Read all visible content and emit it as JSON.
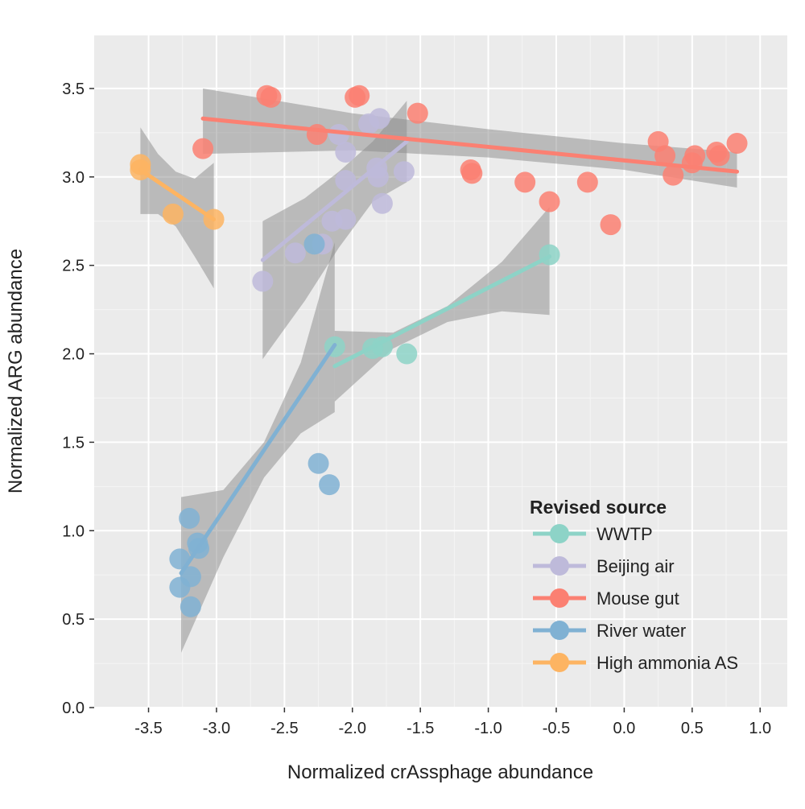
{
  "chart_data": {
    "type": "scatter",
    "title": "",
    "xlabel": "Normalized crAssphage abundance",
    "ylabel": "Normalized ARG abundance",
    "xlim": [
      -3.9,
      1.2
    ],
    "ylim": [
      0.0,
      3.8
    ],
    "xticks": [
      "-3.5",
      "-3.0",
      "-2.5",
      "-2.0",
      "-1.5",
      "-1.0",
      "-0.5",
      "0.0",
      "0.5",
      "1.0"
    ],
    "yticks": [
      "0.0",
      "0.5",
      "1.0",
      "1.5",
      "2.0",
      "2.5",
      "3.0",
      "3.5"
    ],
    "grid": true,
    "legend_title": "Revised source",
    "legend_position": "bottom-right",
    "series": [
      {
        "name": "WWTP",
        "color": "#8dd3c7",
        "points": [
          [
            -2.13,
            2.04
          ],
          [
            -1.85,
            2.03
          ],
          [
            -1.78,
            2.04
          ],
          [
            -1.6,
            2.0
          ],
          [
            -0.55,
            2.56
          ]
        ],
        "fit": [
          [
            -2.13,
            1.93
          ],
          [
            -0.55,
            2.55
          ]
        ],
        "band": {
          "x": [
            -2.13,
            -1.7,
            -1.3,
            -0.9,
            -0.55
          ],
          "lower": [
            1.73,
            2.03,
            2.18,
            2.24,
            2.22
          ],
          "upper": [
            2.13,
            2.12,
            2.27,
            2.52,
            2.83
          ]
        }
      },
      {
        "name": "Beijing air",
        "color": "#bebada",
        "points": [
          [
            -2.66,
            2.41
          ],
          [
            -2.42,
            2.57
          ],
          [
            -2.22,
            2.62
          ],
          [
            -2.15,
            2.75
          ],
          [
            -2.05,
            2.76
          ],
          [
            -2.05,
            2.98
          ],
          [
            -2.05,
            3.14
          ],
          [
            -2.1,
            3.24
          ],
          [
            -1.88,
            3.3
          ],
          [
            -1.8,
            3.33
          ],
          [
            -1.82,
            3.05
          ],
          [
            -1.81,
            3.0
          ],
          [
            -1.78,
            2.85
          ],
          [
            -1.62,
            3.03
          ]
        ],
        "fit": [
          [
            -2.66,
            2.53
          ],
          [
            -1.6,
            3.2
          ]
        ],
        "band": {
          "x": [
            -2.66,
            -2.35,
            -2.1,
            -1.85,
            -1.6
          ],
          "lower": [
            1.97,
            2.3,
            2.6,
            2.86,
            2.97
          ],
          "upper": [
            2.75,
            2.88,
            3.03,
            3.2,
            3.43
          ]
        }
      },
      {
        "name": "Mouse gut",
        "color": "#fb8072",
        "points": [
          [
            -3.1,
            3.16
          ],
          [
            -2.63,
            3.46
          ],
          [
            -2.6,
            3.45
          ],
          [
            -2.26,
            3.24
          ],
          [
            -1.98,
            3.45
          ],
          [
            -1.95,
            3.46
          ],
          [
            -1.52,
            3.36
          ],
          [
            -1.13,
            3.04
          ],
          [
            -1.12,
            3.02
          ],
          [
            -0.73,
            2.97
          ],
          [
            -0.55,
            2.86
          ],
          [
            -0.27,
            2.97
          ],
          [
            -0.1,
            2.73
          ],
          [
            0.25,
            3.2
          ],
          [
            0.3,
            3.12
          ],
          [
            0.36,
            3.01
          ],
          [
            0.5,
            3.08
          ],
          [
            0.52,
            3.12
          ],
          [
            0.68,
            3.14
          ],
          [
            0.7,
            3.12
          ],
          [
            0.83,
            3.19
          ]
        ],
        "fit": [
          [
            -3.1,
            3.33
          ],
          [
            0.83,
            3.03
          ]
        ],
        "band": {
          "x": [
            -3.1,
            -2.0,
            -1.0,
            0.0,
            0.83
          ],
          "lower": [
            3.13,
            3.15,
            3.11,
            3.04,
            2.94
          ],
          "upper": [
            3.5,
            3.36,
            3.27,
            3.19,
            3.14
          ]
        }
      },
      {
        "name": "River water",
        "color": "#80b1d3",
        "points": [
          [
            -3.27,
            0.84
          ],
          [
            -3.27,
            0.68
          ],
          [
            -3.2,
            1.07
          ],
          [
            -3.19,
            0.74
          ],
          [
            -3.19,
            0.57
          ],
          [
            -3.14,
            0.93
          ],
          [
            -3.13,
            0.9
          ],
          [
            -2.28,
            2.62
          ],
          [
            -2.25,
            1.38
          ],
          [
            -2.17,
            1.26
          ]
        ],
        "fit": [
          [
            -3.26,
            0.76
          ],
          [
            -2.13,
            2.05
          ]
        ],
        "band": {
          "x": [
            -3.26,
            -2.95,
            -2.65,
            -2.38,
            -2.13
          ],
          "lower": [
            0.31,
            0.85,
            1.3,
            1.55,
            1.67
          ],
          "upper": [
            1.19,
            1.23,
            1.5,
            1.95,
            2.63
          ]
        }
      },
      {
        "name": "High ammonia AS",
        "color": "#fdb462",
        "points": [
          [
            -3.56,
            3.07
          ],
          [
            -3.56,
            3.04
          ],
          [
            -3.32,
            2.79
          ],
          [
            -3.02,
            2.76
          ]
        ],
        "fit": [
          [
            -3.56,
            3.04
          ],
          [
            -3.02,
            2.76
          ]
        ],
        "band": {
          "x": [
            -3.56,
            -3.43,
            -3.3,
            -3.16,
            -3.02
          ],
          "lower": [
            2.79,
            2.79,
            2.72,
            2.55,
            2.37
          ],
          "upper": [
            3.28,
            3.13,
            3.03,
            2.99,
            3.08
          ]
        }
      }
    ]
  }
}
